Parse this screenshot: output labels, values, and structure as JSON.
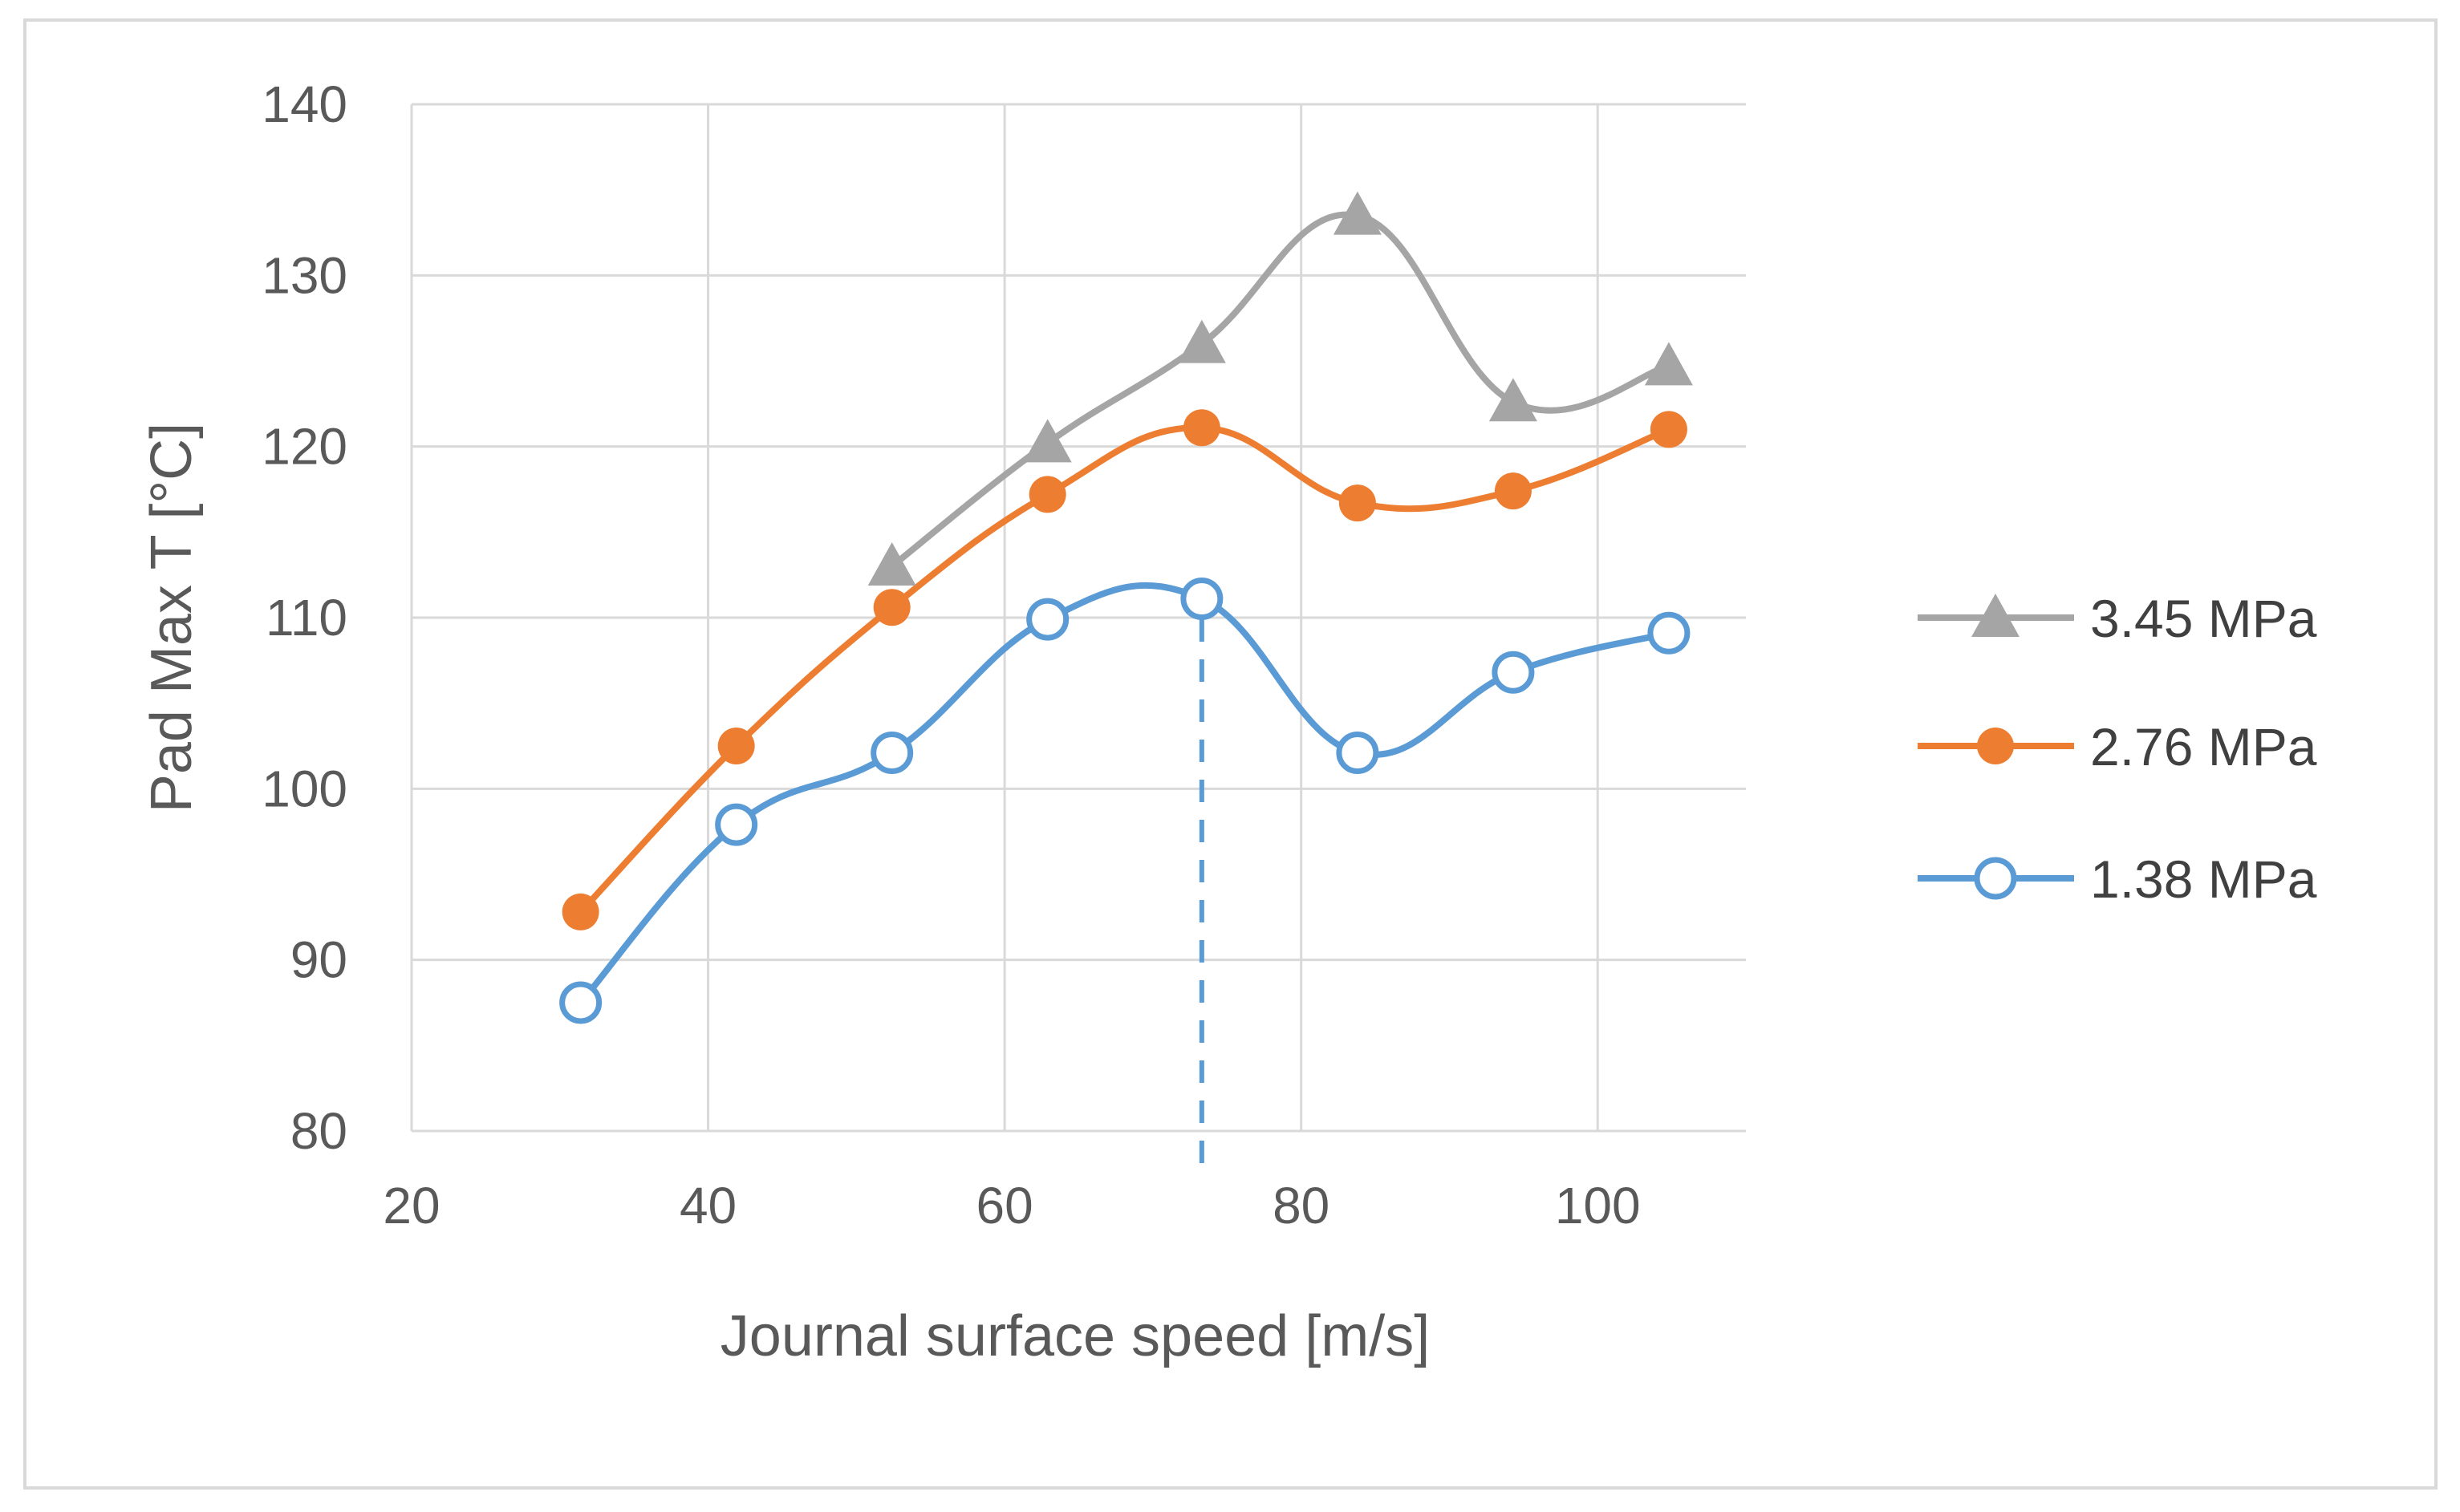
{
  "chart_data": {
    "type": "line",
    "smoothed": true,
    "title": "",
    "xlabel": "Journal surface speed [m/s]",
    "ylabel": "Pad Max T [°C]",
    "xlim": [
      20,
      110
    ],
    "ylim": [
      80,
      140
    ],
    "x_ticks": [
      20,
      40,
      60,
      80,
      100
    ],
    "y_ticks": [
      80,
      90,
      100,
      110,
      120,
      130,
      140
    ],
    "grid": true,
    "legend_position": "right",
    "reference_line": {
      "x": 73.3,
      "from_y": 80,
      "to_y": 111,
      "style": "dashed",
      "color": "#5b9bd5"
    },
    "series": [
      {
        "name": "3.45 MPa",
        "color": "#a5a5a5",
        "marker": "triangle",
        "x": [
          52.4,
          62.9,
          73.3,
          83.8,
          94.3,
          104.8
        ],
        "values": [
          113,
          120.2,
          126,
          133.5,
          122.6,
          124.7
        ]
      },
      {
        "name": "2.76 MPa",
        "color": "#ed7d31",
        "marker": "circle-filled",
        "x": [
          31.4,
          41.9,
          52.4,
          62.9,
          73.3,
          83.8,
          94.3,
          104.8
        ],
        "values": [
          92.8,
          102.5,
          110.6,
          117.2,
          121.1,
          116.7,
          117.4,
          121
        ]
      },
      {
        "name": "1.38 MPa",
        "color": "#5b9bd5",
        "marker": "circle-open",
        "x": [
          31.4,
          41.9,
          52.4,
          62.9,
          73.3,
          83.8,
          94.3,
          104.8
        ],
        "values": [
          87.5,
          97.9,
          102.1,
          109.9,
          111.1,
          102.1,
          106.8,
          109.1
        ]
      }
    ]
  }
}
